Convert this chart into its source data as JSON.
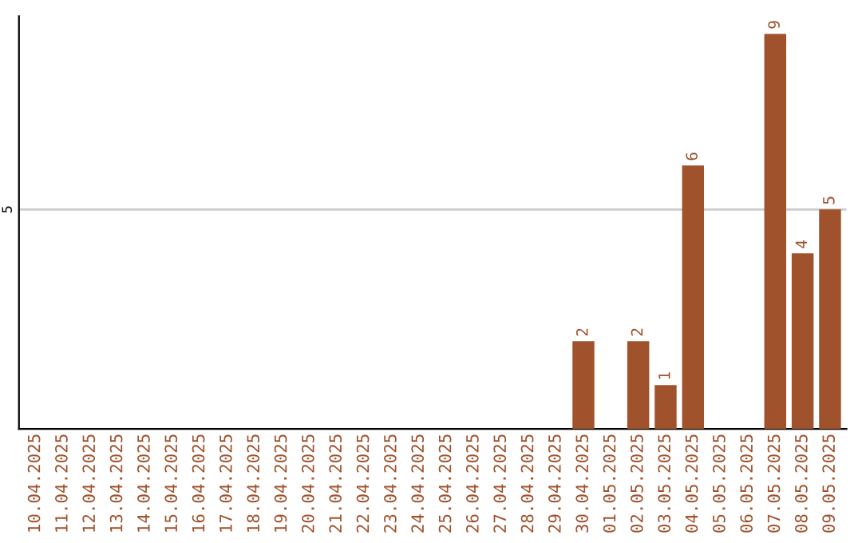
{
  "chart_data": {
    "type": "bar",
    "categories": [
      "10.04.2025",
      "11.04.2025",
      "12.04.2025",
      "13.04.2025",
      "14.04.2025",
      "15.04.2025",
      "16.04.2025",
      "17.04.2025",
      "18.04.2025",
      "19.04.2025",
      "20.04.2025",
      "21.04.2025",
      "22.04.2025",
      "23.04.2025",
      "24.04.2025",
      "25.04.2025",
      "26.04.2025",
      "27.04.2025",
      "28.04.2025",
      "29.04.2025",
      "30.04.2025",
      "01.05.2025",
      "02.05.2025",
      "03.05.2025",
      "04.05.2025",
      "05.05.2025",
      "06.05.2025",
      "07.05.2025",
      "08.05.2025",
      "09.05.2025"
    ],
    "values": [
      null,
      null,
      null,
      null,
      null,
      null,
      null,
      null,
      null,
      null,
      null,
      null,
      null,
      null,
      null,
      null,
      null,
      null,
      null,
      null,
      2,
      null,
      2,
      1,
      6,
      null,
      null,
      9,
      4,
      5
    ],
    "value_labels": [
      null,
      null,
      null,
      null,
      null,
      null,
      null,
      null,
      null,
      null,
      null,
      null,
      null,
      null,
      null,
      null,
      null,
      null,
      null,
      null,
      "2",
      null,
      "2",
      "1",
      "6",
      null,
      null,
      "9",
      "4",
      "5"
    ],
    "color": "#a0522d",
    "ylim": [
      0,
      9.4
    ],
    "yticks": [
      5
    ],
    "grid": "y"
  }
}
